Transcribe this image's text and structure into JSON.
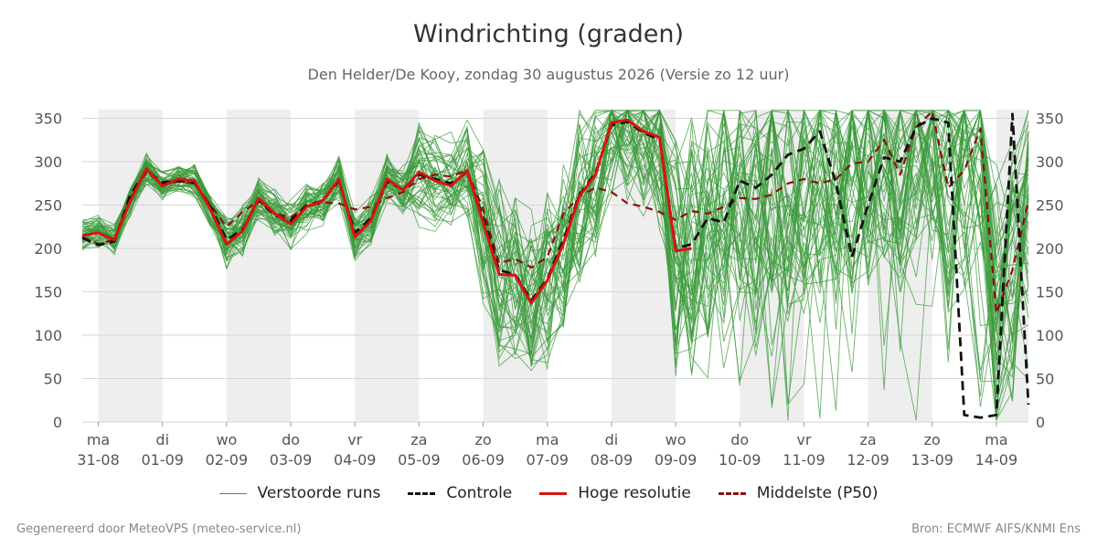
{
  "header": {
    "title": "Windrichting (graden)",
    "subtitle": "Den Helder/De Kooy, zondag 30 augustus 2026 (Versie zo 12 uur)"
  },
  "footer": {
    "left": "Gegenereerd door MeteoVPS (meteo-service.nl)",
    "right": "Bron: ECMWF AIFS/KNMI Ens"
  },
  "legend": [
    {
      "label": "Verstoorde runs",
      "color": "#3a9a3a",
      "style": "thin"
    },
    {
      "label": "Controle",
      "color": "#111111",
      "style": "dashed"
    },
    {
      "label": "Hoge resolutie",
      "color": "#dd1111",
      "style": "solid"
    },
    {
      "label": "Middelste (P50)",
      "color": "#8b1010",
      "style": "dashed"
    }
  ],
  "chart_data": {
    "type": "line",
    "title": "Windrichting (graden)",
    "x_unit": "days",
    "xlim": [
      -0.25,
      14.5
    ],
    "ylim": [
      0,
      360
    ],
    "yticks": [
      0,
      50,
      100,
      150,
      200,
      250,
      300,
      350
    ],
    "x_ticks": [
      {
        "day": "ma",
        "date": "31-08",
        "x": 0
      },
      {
        "day": "di",
        "date": "01-09",
        "x": 1
      },
      {
        "day": "wo",
        "date": "02-09",
        "x": 2
      },
      {
        "day": "do",
        "date": "03-09",
        "x": 3
      },
      {
        "day": "vr",
        "date": "04-09",
        "x": 4
      },
      {
        "day": "za",
        "date": "05-09",
        "x": 5
      },
      {
        "day": "zo",
        "date": "06-09",
        "x": 6
      },
      {
        "day": "ma",
        "date": "07-09",
        "x": 7
      },
      {
        "day": "di",
        "date": "08-09",
        "x": 8
      },
      {
        "day": "wo",
        "date": "09-09",
        "x": 9
      },
      {
        "day": "do",
        "date": "10-09",
        "x": 10
      },
      {
        "day": "vr",
        "date": "11-09",
        "x": 11
      },
      {
        "day": "za",
        "date": "12-09",
        "x": 12
      },
      {
        "day": "zo",
        "date": "13-09",
        "x": 13
      },
      {
        "day": "ma",
        "date": "14-09",
        "x": 14
      }
    ],
    "shaded_days": [
      [
        0,
        1
      ],
      [
        2,
        3
      ],
      [
        4,
        5
      ],
      [
        6,
        7
      ],
      [
        8,
        9
      ],
      [
        10,
        11
      ],
      [
        12,
        13
      ],
      [
        14,
        14.5
      ]
    ],
    "grid": true,
    "series": [
      {
        "name": "Hoge resolutie",
        "x": [
          -0.25,
          0,
          0.25,
          0.5,
          0.75,
          1,
          1.25,
          1.5,
          1.75,
          2,
          2.25,
          2.5,
          2.75,
          3,
          3.25,
          3.5,
          3.75,
          4,
          4.25,
          4.5,
          4.75,
          5,
          5.25,
          5.5,
          5.75,
          6,
          6.25,
          6.5,
          6.75,
          7,
          7.25,
          7.5,
          7.75,
          8,
          8.25,
          8.5,
          8.75,
          9,
          9.25
        ],
        "y": [
          215,
          218,
          210,
          255,
          292,
          272,
          280,
          278,
          245,
          205,
          220,
          258,
          240,
          228,
          248,
          255,
          280,
          213,
          232,
          280,
          267,
          288,
          278,
          272,
          290,
          230,
          170,
          169,
          137,
          163,
          205,
          260,
          285,
          345,
          348,
          335,
          328,
          197,
          200
        ]
      },
      {
        "name": "Controle",
        "x": [
          -0.25,
          0,
          0.25,
          0.5,
          0.75,
          1,
          1.25,
          1.5,
          1.75,
          2,
          2.25,
          2.5,
          2.75,
          3,
          3.25,
          3.5,
          3.75,
          4,
          4.25,
          4.5,
          4.75,
          5,
          5.25,
          5.5,
          5.75,
          6,
          6.25,
          6.5,
          6.75,
          7,
          7.25,
          7.5,
          7.75,
          8,
          8.25,
          8.5,
          8.75,
          9,
          9.25,
          9.5,
          9.75,
          10,
          10.25,
          10.5,
          10.75,
          11,
          11.25,
          11.5,
          11.75,
          12,
          12.25,
          12.5,
          12.75,
          13,
          13.25,
          13.5,
          13.75,
          14,
          14.25,
          14.5
        ],
        "y": [
          212,
          204,
          208,
          262,
          290,
          276,
          278,
          276,
          248,
          210,
          222,
          256,
          238,
          232,
          250,
          255,
          278,
          218,
          235,
          277,
          268,
          285,
          280,
          275,
          288,
          235,
          175,
          170,
          140,
          165,
          210,
          262,
          287,
          342,
          346,
          333,
          326,
          200,
          205,
          235,
          230,
          278,
          270,
          285,
          308,
          315,
          335,
          275,
          190,
          250,
          305,
          300,
          340,
          350,
          345,
          8,
          5,
          8,
          355,
          20
        ]
      },
      {
        "name": "Middelste (P50)",
        "x": [
          -0.25,
          0,
          0.25,
          0.5,
          0.75,
          1,
          1.25,
          1.5,
          1.75,
          2,
          2.25,
          2.5,
          2.75,
          3,
          3.25,
          3.5,
          3.75,
          4,
          4.25,
          4.5,
          4.75,
          5,
          5.25,
          5.5,
          5.75,
          6,
          6.25,
          6.5,
          6.75,
          7,
          7.25,
          7.5,
          7.75,
          8,
          8.25,
          8.5,
          8.75,
          9,
          9.25,
          9.5,
          9.75,
          10,
          10.25,
          10.5,
          10.75,
          11,
          11.25,
          11.5,
          11.75,
          12,
          12.25,
          12.5,
          12.75,
          13,
          13.25,
          13.5,
          13.75,
          14,
          14.25,
          14.5
        ],
        "y": [
          213,
          205,
          210,
          258,
          288,
          274,
          277,
          275,
          250,
          225,
          242,
          255,
          240,
          236,
          248,
          253,
          252,
          245,
          248,
          258,
          265,
          280,
          285,
          283,
          290,
          245,
          183,
          188,
          178,
          190,
          240,
          260,
          270,
          265,
          252,
          248,
          242,
          233,
          243,
          240,
          248,
          258,
          257,
          262,
          275,
          280,
          275,
          280,
          298,
          300,
          325,
          285,
          340,
          358,
          270,
          290,
          338,
          125,
          175,
          255
        ]
      }
    ]
  }
}
